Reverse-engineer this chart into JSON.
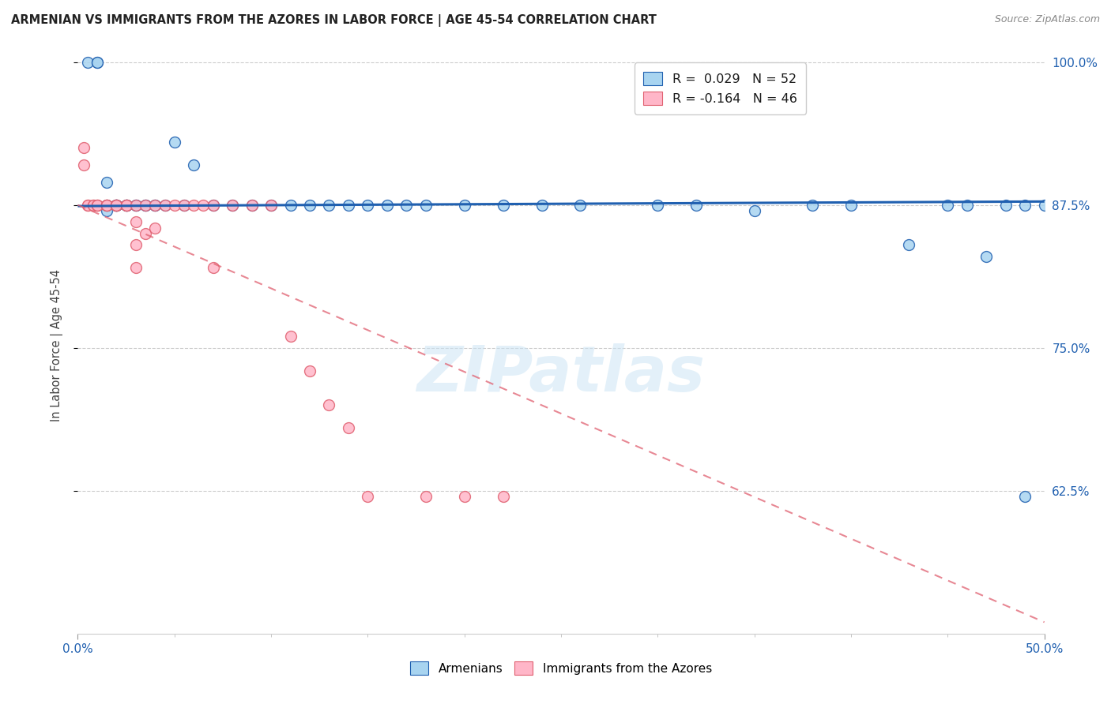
{
  "title": "ARMENIAN VS IMMIGRANTS FROM THE AZORES IN LABOR FORCE | AGE 45-54 CORRELATION CHART",
  "source": "Source: ZipAtlas.com",
  "ylabel": "In Labor Force | Age 45-54",
  "xmin": 0.0,
  "xmax": 0.5,
  "ymin": 0.5,
  "ymax": 1.005,
  "yticks": [
    0.625,
    0.75,
    0.875,
    1.0
  ],
  "ytick_labels": [
    "62.5%",
    "75.0%",
    "87.5%",
    "100.0%"
  ],
  "legend_R_blue": "0.029",
  "legend_N_blue": "52",
  "legend_R_pink": "-0.164",
  "legend_N_pink": "46",
  "blue_color": "#a8d4f0",
  "pink_color": "#ffb6c8",
  "blue_line_color": "#2060b0",
  "pink_line_color": "#e06070",
  "watermark": "ZIPatlas",
  "blue_scatter_x": [
    0.005,
    0.01,
    0.01,
    0.015,
    0.015,
    0.015,
    0.02,
    0.02,
    0.02,
    0.02,
    0.025,
    0.025,
    0.025,
    0.03,
    0.03,
    0.035,
    0.035,
    0.04,
    0.04,
    0.045,
    0.05,
    0.055,
    0.06,
    0.07,
    0.08,
    0.09,
    0.1,
    0.11,
    0.12,
    0.13,
    0.14,
    0.15,
    0.16,
    0.17,
    0.18,
    0.2,
    0.22,
    0.24,
    0.26,
    0.3,
    0.32,
    0.35,
    0.38,
    0.4,
    0.43,
    0.45,
    0.46,
    0.47,
    0.48,
    0.49,
    0.49,
    0.5
  ],
  "blue_scatter_y": [
    1.0,
    1.0,
    1.0,
    0.895,
    0.875,
    0.87,
    0.875,
    0.875,
    0.875,
    0.875,
    0.875,
    0.875,
    0.875,
    0.875,
    0.875,
    0.875,
    0.875,
    0.875,
    0.875,
    0.875,
    0.93,
    0.875,
    0.91,
    0.875,
    0.875,
    0.875,
    0.875,
    0.875,
    0.875,
    0.875,
    0.875,
    0.875,
    0.875,
    0.875,
    0.875,
    0.875,
    0.875,
    0.875,
    0.875,
    0.875,
    0.875,
    0.87,
    0.875,
    0.875,
    0.84,
    0.875,
    0.875,
    0.83,
    0.875,
    0.875,
    0.62,
    0.875
  ],
  "pink_scatter_x": [
    0.003,
    0.003,
    0.005,
    0.005,
    0.008,
    0.008,
    0.01,
    0.01,
    0.01,
    0.015,
    0.015,
    0.015,
    0.015,
    0.02,
    0.02,
    0.02,
    0.02,
    0.025,
    0.025,
    0.025,
    0.03,
    0.03,
    0.03,
    0.03,
    0.035,
    0.035,
    0.04,
    0.04,
    0.045,
    0.05,
    0.055,
    0.06,
    0.065,
    0.07,
    0.07,
    0.08,
    0.09,
    0.1,
    0.11,
    0.12,
    0.13,
    0.14,
    0.15,
    0.18,
    0.2,
    0.22
  ],
  "pink_scatter_y": [
    0.925,
    0.91,
    0.875,
    0.875,
    0.875,
    0.875,
    0.875,
    0.875,
    0.875,
    0.875,
    0.875,
    0.875,
    0.875,
    0.875,
    0.875,
    0.875,
    0.875,
    0.875,
    0.875,
    0.875,
    0.875,
    0.86,
    0.84,
    0.82,
    0.875,
    0.85,
    0.875,
    0.855,
    0.875,
    0.875,
    0.875,
    0.875,
    0.875,
    0.82,
    0.875,
    0.875,
    0.875,
    0.875,
    0.76,
    0.73,
    0.7,
    0.68,
    0.62,
    0.62,
    0.62,
    0.62
  ],
  "blue_trend_x": [
    0.0,
    0.5
  ],
  "blue_trend_y": [
    0.874,
    0.878
  ],
  "pink_trend_x": [
    0.0,
    0.5
  ],
  "pink_trend_y": [
    0.875,
    0.51
  ]
}
